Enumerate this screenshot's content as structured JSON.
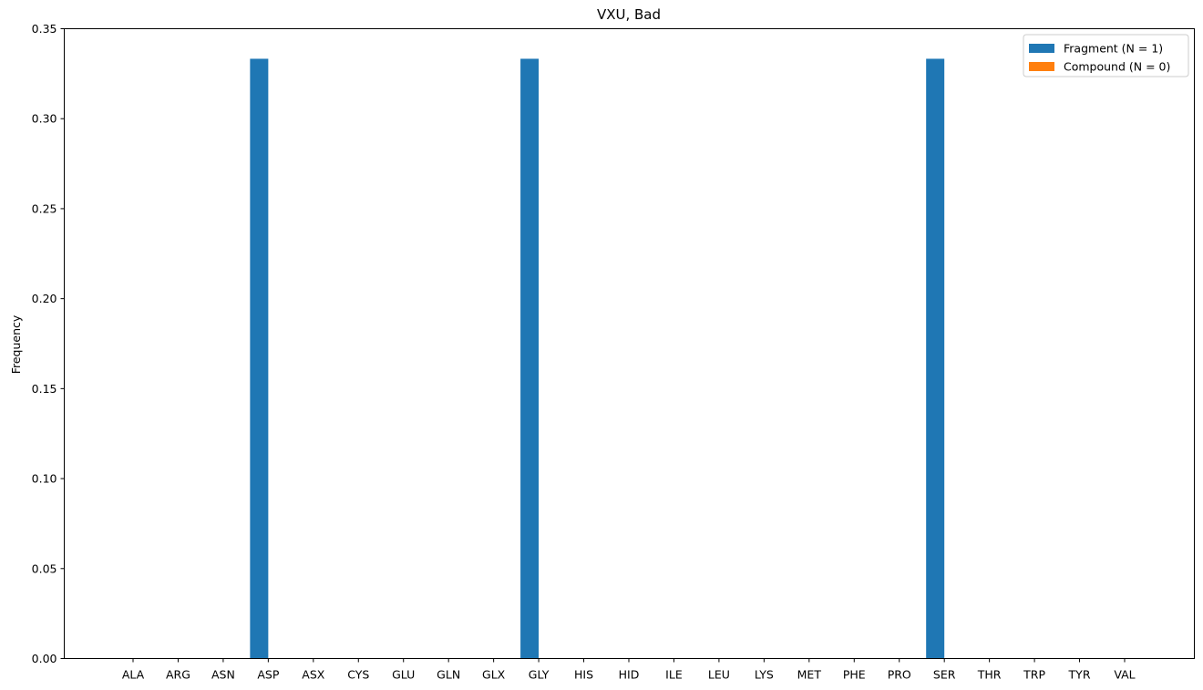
{
  "chart_data": {
    "type": "bar",
    "title": "VXU, Bad",
    "xlabel": "",
    "ylabel": "Frequency",
    "ylim": [
      0,
      0.35
    ],
    "yticks": [
      "0.00",
      "0.05",
      "0.10",
      "0.15",
      "0.20",
      "0.25",
      "0.30",
      "0.35"
    ],
    "categories": [
      "ALA",
      "ARG",
      "ASN",
      "ASP",
      "ASX",
      "CYS",
      "GLU",
      "GLN",
      "GLX",
      "GLY",
      "HIS",
      "HID",
      "ILE",
      "LEU",
      "LYS",
      "MET",
      "PHE",
      "PRO",
      "SER",
      "THR",
      "TRP",
      "TYR",
      "VAL"
    ],
    "series": [
      {
        "name": "Fragment (N = 1)",
        "color": "#1f77b4",
        "values": [
          0,
          0,
          0,
          0.3333,
          0,
          0,
          0,
          0,
          0,
          0.3333,
          0,
          0,
          0,
          0,
          0,
          0,
          0,
          0,
          0.3333,
          0,
          0,
          0,
          0
        ]
      },
      {
        "name": "Compound (N = 0)",
        "color": "#ff7f0e",
        "values": [
          0,
          0,
          0,
          0,
          0,
          0,
          0,
          0,
          0,
          0,
          0,
          0,
          0,
          0,
          0,
          0,
          0,
          0,
          0,
          0,
          0,
          0,
          0
        ]
      }
    ],
    "grid": false,
    "legend_position": "top-right"
  }
}
